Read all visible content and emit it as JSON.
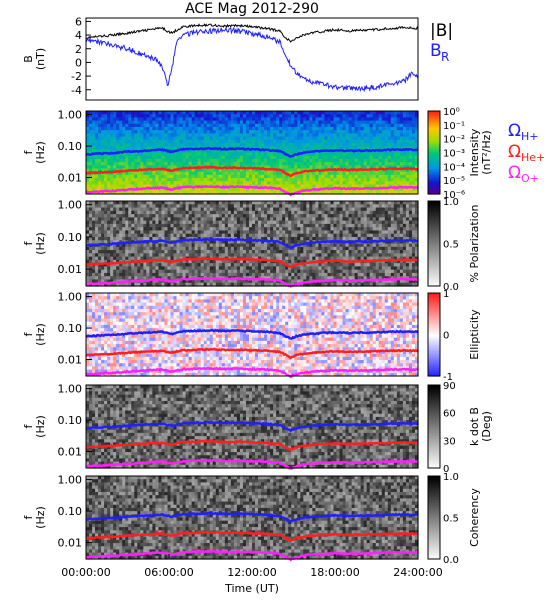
{
  "title": "ACE Mag 2012-290",
  "x_axis": {
    "label": "Time (UT)",
    "ticks": [
      "00:00:00",
      "06:00:00",
      "12:00:00",
      "18:00:00",
      "24:00:00"
    ]
  },
  "panels": [
    {
      "id": "field",
      "type": "line",
      "ylabel_lines": [
        "B",
        "(nT)"
      ],
      "ylim": [
        -5.5,
        6.5
      ],
      "yticks": [
        "6",
        "4",
        "2",
        "0",
        "-2",
        "-4"
      ],
      "legend": [
        {
          "label": "|B|",
          "sub": "",
          "color": "#000000"
        },
        {
          "label": "B",
          "sub": "R",
          "color": "#1f1fff"
        }
      ]
    },
    {
      "id": "intensity",
      "type": "heatmap",
      "ylabel_lines": [
        "f",
        "(Hz)"
      ],
      "yticks": [
        "1.00",
        "0.10",
        "0.01"
      ],
      "colorbar": {
        "title": "Intensity",
        "subtitle": "(nT²/Hz)",
        "ticks": [
          "10⁰",
          "10⁻¹",
          "10⁻²",
          "10⁻³",
          "10⁻⁴",
          "10⁻⁵",
          "10⁻⁶"
        ],
        "scale": "rainbow"
      },
      "gyro_legend": [
        {
          "label": "Ω",
          "sub": "H+",
          "color": "#1f1fff"
        },
        {
          "label": "Ω",
          "sub": "He+",
          "color": "#ff1f1f"
        },
        {
          "label": "Ω",
          "sub": "O+",
          "color": "#ff1fff"
        }
      ]
    },
    {
      "id": "polarization",
      "type": "heatmap",
      "ylabel_lines": [
        "f",
        "(Hz)"
      ],
      "yticks": [
        "1.00",
        "0.10",
        "0.01"
      ],
      "colorbar": {
        "title": "% Polarization",
        "subtitle": "",
        "ticks": [
          "1.0",
          "0.5",
          "0.0"
        ],
        "scale": "gray"
      }
    },
    {
      "id": "ellipticity",
      "type": "heatmap",
      "ylabel_lines": [
        "f",
        "(Hz)"
      ],
      "yticks": [
        "1.00",
        "0.10",
        "0.01"
      ],
      "colorbar": {
        "title": "Ellipticity",
        "subtitle": "",
        "ticks": [
          "1",
          "0",
          "-1"
        ],
        "scale": "bwr"
      }
    },
    {
      "id": "kdotb",
      "type": "heatmap",
      "ylabel_lines": [
        "f",
        "(Hz)"
      ],
      "yticks": [
        "1.00",
        "0.10",
        "0.01"
      ],
      "colorbar": {
        "title": "k dot B",
        "subtitle": "(Deg)",
        "ticks": [
          "90",
          "60",
          "30",
          "0"
        ],
        "scale": "gray"
      }
    },
    {
      "id": "coherency",
      "type": "heatmap",
      "ylabel_lines": [
        "f",
        "(Hz)"
      ],
      "yticks": [
        "1.00",
        "0.10",
        "0.01"
      ],
      "colorbar": {
        "title": "Coherency",
        "subtitle": "",
        "ticks": [
          "1.0",
          "0.5",
          "0.0"
        ],
        "scale": "gray"
      }
    }
  ],
  "chart_data": {
    "type": "line",
    "title": "ACE Mag 2012-290",
    "xlabel": "Time (UT)",
    "xlim": [
      0,
      24
    ],
    "ylabel": "B (nT)",
    "ylim": [
      -5.5,
      6.5
    ],
    "x_hours": [
      0,
      1,
      2,
      3,
      4,
      5,
      5.5,
      5.9,
      6.2,
      6.6,
      7,
      8,
      9,
      10,
      11,
      12,
      13,
      14,
      14.5,
      14.8,
      15.2,
      16,
      17,
      18,
      19,
      20,
      21,
      22,
      23,
      23.6,
      24
    ],
    "series": [
      {
        "name": "|B|",
        "color": "#000000",
        "values": [
          3.6,
          3.8,
          4.0,
          4.3,
          4.6,
          4.9,
          5.0,
          4.6,
          4.3,
          4.8,
          5.2,
          5.4,
          5.5,
          5.3,
          5.4,
          5.2,
          5.0,
          4.6,
          3.5,
          3.0,
          3.6,
          4.2,
          4.5,
          4.8,
          4.6,
          4.7,
          4.8,
          5.0,
          5.1,
          5.0,
          5.0
        ]
      },
      {
        "name": "B",
        "color": "#1f1fff",
        "values": [
          3.3,
          3.0,
          2.5,
          2.0,
          1.2,
          0.5,
          -0.5,
          -3.5,
          -1.0,
          3.6,
          4.0,
          4.4,
          4.6,
          4.8,
          4.6,
          4.2,
          3.8,
          3.0,
          1.0,
          -0.5,
          -1.5,
          -2.6,
          -3.2,
          -3.6,
          -3.8,
          -3.8,
          -3.6,
          -3.2,
          -2.8,
          -1.5,
          -2.0
        ]
      }
    ]
  },
  "freq_traces": {
    "x_hours": [
      0,
      1,
      2,
      3,
      4,
      5,
      5.5,
      5.9,
      6.2,
      6.6,
      7,
      8,
      9,
      10,
      11,
      12,
      13,
      14,
      14.5,
      14.8,
      15.2,
      16,
      17,
      18,
      19,
      20,
      21,
      22,
      23,
      23.6,
      24
    ],
    "series": [
      {
        "name": "Ω H+",
        "color": "#1f1fff",
        "unit": "Hz",
        "values": [
          0.055,
          0.058,
          0.061,
          0.066,
          0.07,
          0.074,
          0.076,
          0.07,
          0.065,
          0.073,
          0.079,
          0.082,
          0.084,
          0.081,
          0.082,
          0.079,
          0.076,
          0.07,
          0.053,
          0.046,
          0.055,
          0.064,
          0.069,
          0.073,
          0.07,
          0.072,
          0.073,
          0.076,
          0.078,
          0.076,
          0.076
        ]
      },
      {
        "name": "Ω He+",
        "color": "#ff1f1f",
        "unit": "Hz",
        "values": [
          0.0138,
          0.0145,
          0.0152,
          0.0164,
          0.0175,
          0.0186,
          0.019,
          0.0175,
          0.0164,
          0.0183,
          0.0198,
          0.0205,
          0.021,
          0.0202,
          0.0205,
          0.0198,
          0.019,
          0.0175,
          0.0133,
          0.0114,
          0.0138,
          0.016,
          0.0171,
          0.0183,
          0.0175,
          0.0179,
          0.0183,
          0.019,
          0.0194,
          0.019,
          0.019
        ]
      },
      {
        "name": "Ω O+",
        "color": "#ff1fff",
        "unit": "Hz",
        "values": [
          0.0034,
          0.0036,
          0.0038,
          0.0041,
          0.0044,
          0.0047,
          0.0048,
          0.0044,
          0.0041,
          0.0046,
          0.0049,
          0.0051,
          0.0052,
          0.005,
          0.0051,
          0.0049,
          0.0048,
          0.0044,
          0.0033,
          0.0029,
          0.0034,
          0.004,
          0.0043,
          0.0046,
          0.0044,
          0.0045,
          0.0046,
          0.0048,
          0.0049,
          0.0048,
          0.0048
        ]
      }
    ]
  }
}
